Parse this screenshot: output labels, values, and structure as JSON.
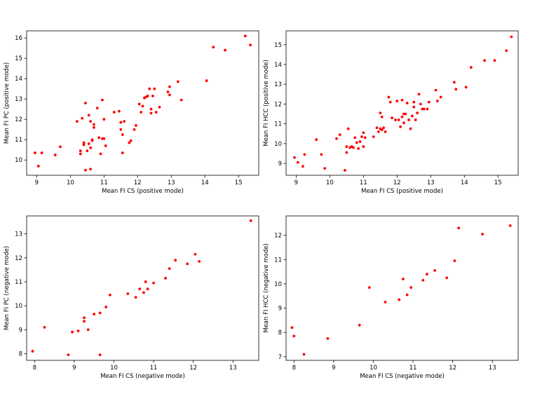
{
  "chart_data": [
    {
      "type": "scatter",
      "xlabel": "Mean FI CS (positive mode)",
      "ylabel": "Mean FI PC (positive mode)",
      "xlim": [
        8.7,
        15.6
      ],
      "ylim": [
        9.25,
        16.35
      ],
      "xticks": [
        9,
        10,
        11,
        12,
        13,
        14,
        15
      ],
      "yticks": [
        10,
        11,
        12,
        13,
        14,
        15,
        16
      ],
      "color": "#ff0000",
      "grid": false,
      "x": [
        8.95,
        9.05,
        9.15,
        9.55,
        9.7,
        10.2,
        10.3,
        10.3,
        10.35,
        10.4,
        10.4,
        10.45,
        10.45,
        10.5,
        10.55,
        10.55,
        10.6,
        10.6,
        10.6,
        10.65,
        10.65,
        10.7,
        10.7,
        10.8,
        10.85,
        10.9,
        10.95,
        10.95,
        11.0,
        11.0,
        11.05,
        11.3,
        11.45,
        11.5,
        11.5,
        11.55,
        11.55,
        11.6,
        11.75,
        11.8,
        11.9,
        11.95,
        12.05,
        12.1,
        12.15,
        12.2,
        12.25,
        12.3,
        12.35,
        12.4,
        12.4,
        12.45,
        12.5,
        12.55,
        12.65,
        12.9,
        12.95,
        12.95,
        13.2,
        13.3,
        14.05,
        14.25,
        14.6,
        15.2,
        15.35
      ],
      "y": [
        10.35,
        9.7,
        10.35,
        10.25,
        10.65,
        11.9,
        10.3,
        10.45,
        12.05,
        10.85,
        10.75,
        12.8,
        9.5,
        10.45,
        10.8,
        12.2,
        9.55,
        10.6,
        11.9,
        10.95,
        11.0,
        11.6,
        11.75,
        12.55,
        11.1,
        10.3,
        11.05,
        12.95,
        11.05,
        12.0,
        10.7,
        12.35,
        12.4,
        11.5,
        11.85,
        11.25,
        10.35,
        11.9,
        10.85,
        10.95,
        11.5,
        11.7,
        12.75,
        12.35,
        12.65,
        13.05,
        13.1,
        13.15,
        13.5,
        12.3,
        12.5,
        13.15,
        13.5,
        12.35,
        12.6,
        13.35,
        13.6,
        13.2,
        13.85,
        12.95,
        13.9,
        15.55,
        15.4,
        16.1,
        15.65
      ]
    },
    {
      "type": "scatter",
      "xlabel": "Mean FI CS (positive mode)",
      "ylabel": "Mean FI HCC (positive mode)",
      "xlim": [
        8.7,
        15.6
      ],
      "ylim": [
        8.4,
        15.7
      ],
      "xticks": [
        9,
        10,
        11,
        12,
        13,
        14,
        15
      ],
      "yticks": [
        9,
        10,
        11,
        12,
        13,
        14,
        15
      ],
      "color": "#ff0000",
      "grid": false,
      "x": [
        8.95,
        9.05,
        9.2,
        9.25,
        9.6,
        9.75,
        9.85,
        10.2,
        10.3,
        10.45,
        10.5,
        10.5,
        10.55,
        10.6,
        10.65,
        10.7,
        10.75,
        10.8,
        10.85,
        10.9,
        10.95,
        11.0,
        11.0,
        11.05,
        11.3,
        11.4,
        11.45,
        11.5,
        11.5,
        11.55,
        11.55,
        11.6,
        11.65,
        11.75,
        11.8,
        11.85,
        11.95,
        12.0,
        12.05,
        12.1,
        12.15,
        12.15,
        12.2,
        12.2,
        12.25,
        12.3,
        12.35,
        12.4,
        12.45,
        12.5,
        12.5,
        12.55,
        12.6,
        12.65,
        12.7,
        12.75,
        12.8,
        12.9,
        12.95,
        13.15,
        13.2,
        13.3,
        13.7,
        13.75,
        14.05,
        14.2,
        14.6,
        14.9,
        15.25,
        15.4
      ],
      "y": [
        9.3,
        9.05,
        8.85,
        9.45,
        10.2,
        9.45,
        8.75,
        10.25,
        10.45,
        8.65,
        9.55,
        9.85,
        10.75,
        9.8,
        9.85,
        9.8,
        10.3,
        10.05,
        9.75,
        10.1,
        10.35,
        9.85,
        10.55,
        10.3,
        10.35,
        10.8,
        10.6,
        11.55,
        10.75,
        11.35,
        10.7,
        10.8,
        10.6,
        12.35,
        12.1,
        11.3,
        11.2,
        12.15,
        11.2,
        10.85,
        11.35,
        12.2,
        11.05,
        11.5,
        11.5,
        12.05,
        11.2,
        10.75,
        11.4,
        12.1,
        11.85,
        11.2,
        11.55,
        12.5,
        12.0,
        11.75,
        11.75,
        11.75,
        12.1,
        12.7,
        12.15,
        12.35,
        13.1,
        12.75,
        12.85,
        13.85,
        14.2,
        14.2,
        14.7,
        15.4
      ]
    },
    {
      "type": "scatter",
      "xlabel": "Mean FI CS (negative mode)",
      "ylabel": "Mean FI PC (negative mode)",
      "xlim": [
        7.8,
        13.65
      ],
      "ylim": [
        7.72,
        13.75
      ],
      "xticks": [
        8,
        9,
        10,
        11,
        12,
        13
      ],
      "yticks": [
        8,
        9,
        10,
        11,
        12,
        13
      ],
      "color": "#ff0000",
      "grid": false,
      "x": [
        7.95,
        8.25,
        8.85,
        8.95,
        9.1,
        9.25,
        9.25,
        9.35,
        9.5,
        9.65,
        9.65,
        9.8,
        9.9,
        10.35,
        10.55,
        10.65,
        10.75,
        10.8,
        10.85,
        11.0,
        11.3,
        11.4,
        11.55,
        11.85,
        12.05,
        12.15,
        13.45
      ],
      "y": [
        8.1,
        9.1,
        7.95,
        8.9,
        8.95,
        9.35,
        9.5,
        9.0,
        9.65,
        7.95,
        9.7,
        9.95,
        10.45,
        10.5,
        10.35,
        10.7,
        10.55,
        11.0,
        10.7,
        10.95,
        11.15,
        11.55,
        11.9,
        11.75,
        12.15,
        11.85,
        13.55
      ]
    },
    {
      "type": "scatter",
      "xlabel": "Mean FI CS (negative mode)",
      "ylabel": "Mean FI HCC (negative mode)",
      "xlim": [
        7.8,
        13.65
      ],
      "ylim": [
        6.85,
        12.8
      ],
      "xticks": [
        8,
        9,
        10,
        11,
        12,
        13
      ],
      "yticks": [
        7,
        8,
        9,
        10,
        11,
        12
      ],
      "color": "#ff0000",
      "grid": false,
      "x": [
        7.95,
        8.0,
        8.25,
        8.85,
        9.65,
        9.9,
        10.3,
        10.65,
        10.75,
        10.85,
        10.95,
        11.25,
        11.35,
        11.55,
        11.85,
        12.05,
        12.15,
        12.75,
        13.45
      ],
      "y": [
        8.2,
        7.85,
        7.1,
        7.75,
        8.3,
        9.85,
        9.25,
        9.35,
        10.2,
        9.55,
        9.85,
        10.15,
        10.4,
        10.55,
        10.25,
        10.95,
        12.3,
        12.05,
        12.4
      ]
    }
  ]
}
